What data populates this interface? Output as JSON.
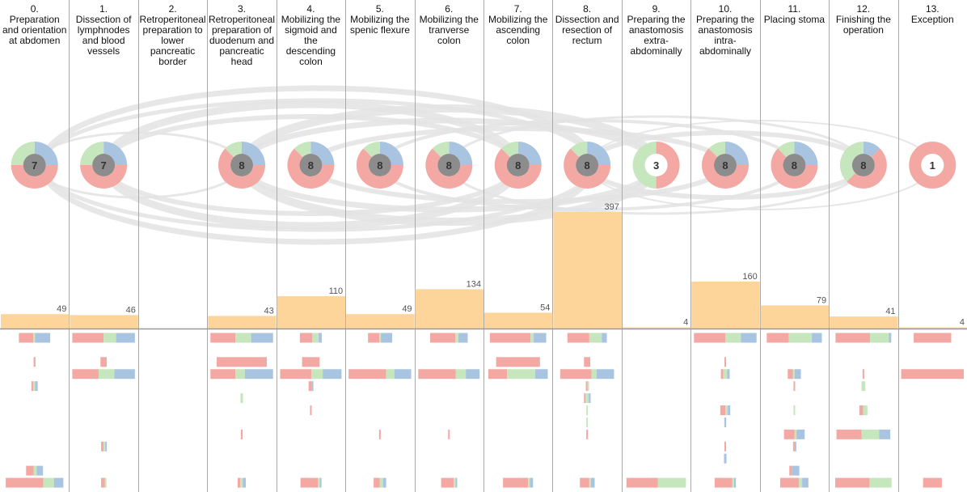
{
  "colors": {
    "red": "#f4a8a4",
    "green": "#c6e6bd",
    "blue": "#a9c4e0",
    "orange": "#fdd49a",
    "gray_center": "#8c8c8c",
    "divider": "#aaaaaa",
    "arc": "#e3e3e3"
  },
  "chart_data": {
    "type": "bar",
    "phases": [
      {
        "num": "0.",
        "title": [
          "Preparation",
          "and orientation",
          "at abdomen"
        ],
        "count": 49,
        "donut_value": "7",
        "donut": {
          "red": 0.5,
          "green": 0.25,
          "blue": 0.25
        }
      },
      {
        "num": "1.",
        "title": [
          "Dissection of",
          "lymphnodes",
          "and blood",
          "vessels"
        ],
        "count": 46,
        "donut_value": "7",
        "donut": {
          "red": 0.5,
          "green": 0.25,
          "blue": 0.25
        }
      },
      {
        "num": "2.",
        "title": [
          "Retroperitoneal",
          "preparation to",
          "lower",
          "pancreatic",
          "border"
        ],
        "count": null,
        "donut_value": null,
        "donut": null
      },
      {
        "num": "3.",
        "title": [
          "Retroperitoneal",
          "preparation of",
          "duodenum and",
          "pancreatic",
          "head"
        ],
        "count": 43,
        "donut_value": "8",
        "donut": {
          "red": 0.625,
          "green": 0.125,
          "blue": 0.25
        }
      },
      {
        "num": "4.",
        "title": [
          "Mobilizing the",
          "sigmoid and",
          "the",
          "descending",
          "colon"
        ],
        "count": 110,
        "donut_value": "8",
        "donut": {
          "red": 0.625,
          "green": 0.125,
          "blue": 0.25
        }
      },
      {
        "num": "5.",
        "title": [
          "Mobilizing the",
          "spenic flexure"
        ],
        "count": 49,
        "donut_value": "8",
        "donut": {
          "red": 0.625,
          "green": 0.125,
          "blue": 0.25
        }
      },
      {
        "num": "6.",
        "title": [
          "Mobilizing the",
          "tranverse",
          "colon"
        ],
        "count": 134,
        "donut_value": "8",
        "donut": {
          "red": 0.625,
          "green": 0.125,
          "blue": 0.25
        }
      },
      {
        "num": "7.",
        "title": [
          "Mobilizing the",
          "ascending",
          "colon"
        ],
        "count": 54,
        "donut_value": "8",
        "donut": {
          "red": 0.625,
          "green": 0.125,
          "blue": 0.25
        }
      },
      {
        "num": "8.",
        "title": [
          "Dissection and",
          "resection of",
          "rectum"
        ],
        "count": 397,
        "donut_value": "8",
        "donut": {
          "red": 0.625,
          "green": 0.125,
          "blue": 0.25
        }
      },
      {
        "num": "9.",
        "title": [
          "Preparing the",
          "anastomosis",
          "extra-",
          "abdominally"
        ],
        "count": 4,
        "donut_value": "3",
        "donut": {
          "red": 0.5,
          "green": 0.5,
          "blue": 0
        }
      },
      {
        "num": "10.",
        "title": [
          "Preparing the",
          "anastomosis",
          "intra-",
          "abdominally"
        ],
        "count": 160,
        "donut_value": "8",
        "donut": {
          "red": 0.625,
          "green": 0.125,
          "blue": 0.25
        }
      },
      {
        "num": "11.",
        "title": [
          "Placing stoma"
        ],
        "count": 79,
        "donut_value": "8",
        "donut": {
          "red": 0.625,
          "green": 0.125,
          "blue": 0.25
        }
      },
      {
        "num": "12.",
        "title": [
          "Finishing the",
          "operation"
        ],
        "count": 41,
        "donut_value": "8",
        "donut": {
          "red": 0.5,
          "green": 0.375,
          "blue": 0.125
        }
      },
      {
        "num": "13.",
        "title": [
          "Exception"
        ],
        "count": 4,
        "donut_value": "1",
        "donut": {
          "red": 1,
          "green": 0,
          "blue": 0
        }
      }
    ],
    "detail_rows": [
      [
        [
          0.23,
          0.03,
          0.24
        ],
        [
          0.5,
          0.2,
          0.3
        ],
        null,
        [
          0.4,
          0.25,
          0.35
        ],
        [
          0.2,
          0.1,
          0.05
        ],
        [
          0.18,
          0.02,
          0.18
        ],
        [
          0.4,
          0.05,
          0.15
        ],
        [
          0.65,
          0.05,
          0.2
        ],
        [
          0.35,
          0.2,
          0.08
        ],
        null,
        [
          0.5,
          0.25,
          0.25
        ],
        [
          0.35,
          0.37,
          0.16
        ],
        [
          0.55,
          0.3,
          0.04
        ],
        [
          0.6,
          0,
          0
        ]
      ],
      [
        null,
        null,
        null,
        null,
        null,
        null,
        null,
        null,
        null,
        null,
        null,
        null,
        null,
        null
      ],
      [
        [
          0.03,
          0,
          0
        ],
        [
          0.1,
          0,
          0
        ],
        null,
        [
          0.8,
          0,
          0
        ],
        [
          0.28,
          0,
          0
        ],
        null,
        null,
        [
          0.7,
          0,
          0
        ],
        [
          0.1,
          0,
          0
        ],
        null,
        [
          0.02,
          0,
          0
        ],
        null,
        null,
        null
      ],
      [
        null,
        [
          0.42,
          0.25,
          0.33
        ],
        null,
        [
          0.4,
          0.15,
          0.45
        ],
        [
          0.5,
          0.18,
          0.3
        ],
        [
          0.6,
          0.13,
          0.27
        ],
        [
          0.6,
          0.16,
          0.22
        ],
        [
          0.3,
          0.45,
          0.2
        ],
        [
          0.5,
          0.08,
          0.28
        ],
        null,
        [
          0.04,
          0.06,
          0.04
        ],
        [
          0.08,
          0.03,
          0.1
        ],
        [
          0.02,
          0,
          0
        ],
        [
          1,
          0,
          0
        ]
      ],
      [
        [
          0.03,
          0.03,
          0.04
        ],
        null,
        null,
        null,
        [
          0.05,
          0,
          0.02
        ],
        null,
        null,
        null,
        [
          0.02,
          0.02,
          0
        ],
        null,
        null,
        [
          0.01,
          0,
          0
        ],
        [
          0,
          0.06,
          0
        ],
        null
      ],
      [
        null,
        null,
        null,
        [
          0,
          0.04,
          0
        ],
        null,
        null,
        null,
        null,
        [
          0.02,
          0.05,
          0.03
        ],
        null,
        null,
        null,
        null,
        null
      ],
      [
        null,
        null,
        null,
        null,
        [
          0.02,
          0,
          0
        ],
        null,
        null,
        null,
        [
          0,
          0.02,
          0
        ],
        null,
        [
          0.08,
          0.04,
          0.04
        ],
        [
          0,
          0.02,
          0
        ],
        [
          0.06,
          0.07,
          0
        ],
        null
      ],
      [
        null,
        null,
        null,
        null,
        null,
        null,
        null,
        null,
        [
          0,
          0.02,
          0
        ],
        null,
        [
          0,
          0,
          0.03
        ],
        null,
        null,
        null
      ],
      [
        null,
        null,
        null,
        [
          0.03,
          0,
          0
        ],
        null,
        [
          0.02,
          0,
          0
        ],
        [
          0.02,
          0,
          0
        ],
        null,
        [
          0.01,
          0,
          0
        ],
        null,
        null,
        [
          0.17,
          0.03,
          0.13
        ],
        [
          0.4,
          0.28,
          0.18
        ],
        null
      ],
      [
        null,
        [
          0.04,
          0.02,
          0.02
        ],
        null,
        null,
        null,
        null,
        null,
        null,
        null,
        null,
        [
          0.02,
          0,
          0
        ],
        [
          0.02,
          0,
          0.02
        ],
        null,
        null
      ],
      [
        null,
        null,
        null,
        null,
        null,
        null,
        null,
        null,
        null,
        null,
        [
          0,
          0,
          0.04
        ],
        null,
        null,
        null
      ],
      [
        [
          0.12,
          0.05,
          0.1
        ],
        null,
        null,
        null,
        null,
        null,
        null,
        null,
        null,
        null,
        null,
        [
          0.04,
          0,
          0.12
        ],
        null,
        null
      ],
      [
        [
          0.6,
          0.17,
          0.15
        ],
        [
          0.06,
          0.02,
          0
        ],
        null,
        [
          0.04,
          0.04,
          0.05
        ],
        [
          0.28,
          0.03,
          0.02
        ],
        [
          0.1,
          0.05,
          0.05
        ],
        [
          0.2,
          0.03,
          0.02
        ],
        [
          0.4,
          0.03,
          0.05
        ],
        [
          0.15,
          0.02,
          0.06
        ],
        [
          0.5,
          0.45,
          0
        ],
        [
          0.28,
          0.03,
          0.03
        ],
        [
          0.3,
          0.05,
          0.1
        ],
        [
          0.55,
          0.35,
          0
        ],
        [
          0.3,
          0,
          0
        ]
      ]
    ]
  }
}
